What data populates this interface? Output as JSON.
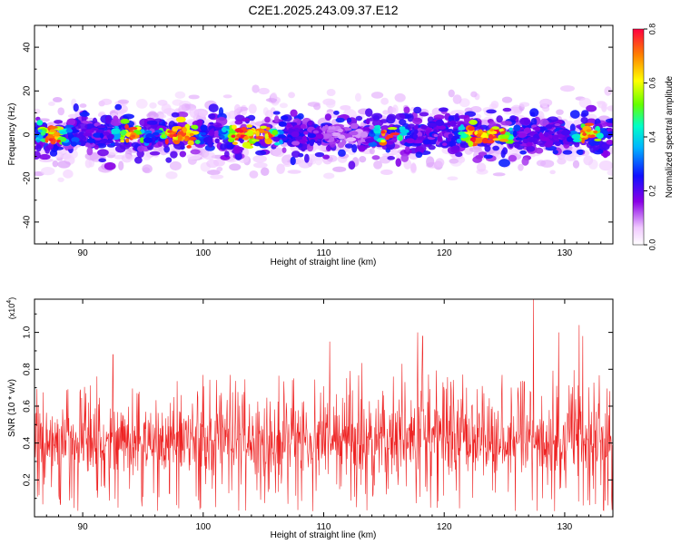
{
  "title": "C2E1.2025.243.09.37.E12",
  "chart_data": [
    {
      "type": "heatmap",
      "name": "spectrogram",
      "xlabel": "Height of straight line (km)",
      "ylabel": "Frequency (Hz)",
      "xlim": [
        86,
        134
      ],
      "ylim": [
        -50,
        50
      ],
      "xticks": [
        90,
        100,
        110,
        120,
        130
      ],
      "yticks": [
        -40,
        -20,
        0,
        20,
        40
      ],
      "colorbar": {
        "label": "Normalized spectral amplitude",
        "range": [
          0.0,
          0.8
        ],
        "ticks": [
          "0.0",
          "0.2",
          "0.4",
          "0.6",
          "0.8"
        ]
      },
      "band": {
        "center_freq_hz": 0,
        "typical_halfwidth_hz": 8,
        "max_extent_hz": 22,
        "peak_amplitude": 0.8,
        "hotspots_km": [
          87.5,
          94,
          97.5,
          98.5,
          103,
          105,
          115.5,
          122.5,
          124.5,
          132
        ]
      }
    },
    {
      "type": "line",
      "name": "snr",
      "xlabel": "Height of straight line (km)",
      "ylabel": "SNR (10 * v/v)",
      "scale_label": "(x10",
      "scale_exponent": "4",
      "scale_suffix": ")",
      "xlim": [
        86,
        134
      ],
      "ylim": [
        0.0,
        1.18
      ],
      "xticks": [
        90,
        100,
        110,
        120,
        130
      ],
      "yticks": [
        "0.2",
        "0.4",
        "0.6",
        "0.8",
        "1.0"
      ],
      "ytick_values": [
        0.2,
        0.4,
        0.6,
        0.8,
        1.0
      ],
      "color": "#ee2222",
      "series_summary": {
        "n_points": 1400,
        "baseline": 0.4,
        "typical_range": [
          0.18,
          0.65
        ],
        "peaks": [
          {
            "x": 92.5,
            "y": 0.88
          },
          {
            "x": 110.5,
            "y": 0.95
          },
          {
            "x": 116.5,
            "y": 0.83
          },
          {
            "x": 117.8,
            "y": 1.0
          },
          {
            "x": 118.2,
            "y": 0.98
          },
          {
            "x": 127.4,
            "y": 1.18
          },
          {
            "x": 129.5,
            "y": 1.0
          },
          {
            "x": 131.2,
            "y": 1.04
          },
          {
            "x": 131.5,
            "y": 0.98
          }
        ]
      }
    }
  ]
}
